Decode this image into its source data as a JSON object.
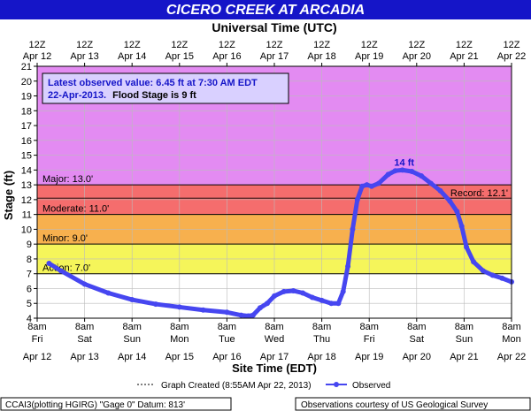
{
  "chart_data": {
    "type": "line",
    "title": "CICERO CREEK AT ARCADIA",
    "top_axis_label": "Universal Time (UTC)",
    "xlabel": "Site Time (EDT)",
    "ylabel": "Stage (ft)",
    "ylim": [
      4,
      21
    ],
    "y_ticks": [
      "4",
      "5",
      "6",
      "7",
      "8",
      "9",
      "10",
      "11",
      "12",
      "13",
      "14",
      "15",
      "16",
      "17",
      "18",
      "19",
      "20",
      "21"
    ],
    "top_ticks": [
      {
        "hour": "12Z",
        "date": "Apr 12"
      },
      {
        "hour": "12Z",
        "date": "Apr 13"
      },
      {
        "hour": "12Z",
        "date": "Apr 14"
      },
      {
        "hour": "12Z",
        "date": "Apr 15"
      },
      {
        "hour": "12Z",
        "date": "Apr 16"
      },
      {
        "hour": "12Z",
        "date": "Apr 17"
      },
      {
        "hour": "12Z",
        "date": "Apr 18"
      },
      {
        "hour": "12Z",
        "date": "Apr 19"
      },
      {
        "hour": "12Z",
        "date": "Apr 20"
      },
      {
        "hour": "12Z",
        "date": "Apr 21"
      },
      {
        "hour": "12Z",
        "date": "Apr 22"
      }
    ],
    "bottom_ticks": [
      {
        "time": "8am",
        "day": "Fri",
        "date": "Apr 12"
      },
      {
        "time": "8am",
        "day": "Sat",
        "date": "Apr 13"
      },
      {
        "time": "8am",
        "day": "Sun",
        "date": "Apr 14"
      },
      {
        "time": "8am",
        "day": "Mon",
        "date": "Apr 15"
      },
      {
        "time": "8am",
        "day": "Tue",
        "date": "Apr 16"
      },
      {
        "time": "8am",
        "day": "Wed",
        "date": "Apr 17"
      },
      {
        "time": "8am",
        "day": "Thu",
        "date": "Apr 18"
      },
      {
        "time": "8am",
        "day": "Fri",
        "date": "Apr 19"
      },
      {
        "time": "8am",
        "day": "Sat",
        "date": "Apr 20"
      },
      {
        "time": "8am",
        "day": "Sun",
        "date": "Apr 21"
      },
      {
        "time": "8am",
        "day": "Mon",
        "date": "Apr 22"
      }
    ],
    "bands": [
      {
        "label": "Major: 13.0'",
        "from": 13.0,
        "to": 21.0,
        "color": "#e38bf2"
      },
      {
        "label": "Moderate: 11.0'",
        "from": 11.0,
        "to": 13.0,
        "color": "#f56d6d"
      },
      {
        "label": "Minor: 9.0'",
        "from": 9.0,
        "to": 11.0,
        "color": "#f7b04e"
      },
      {
        "label": "Action: 7.0'",
        "from": 7.0,
        "to": 9.0,
        "color": "#f5f55a"
      }
    ],
    "record": {
      "label": "Record: 12.1'",
      "value": 12.1
    },
    "info_box": {
      "line1": "Latest observed value: 6.45 ft at 7:30 AM EDT",
      "line2_date": "22-Apr-2013.",
      "line2_flood": "Flood Stage is 9 ft"
    },
    "peak": {
      "label": "14 ft",
      "x": 7.7,
      "y": 14.0
    },
    "series": [
      {
        "name": "Observed",
        "color": "#4646f0",
        "x": [
          0.25,
          0.5,
          1.0,
          1.5,
          2.0,
          2.5,
          3.0,
          3.5,
          4.0,
          4.3,
          4.45,
          4.55,
          4.7,
          4.85,
          5.0,
          5.2,
          5.4,
          5.6,
          5.8,
          6.0,
          6.2,
          6.35,
          6.45,
          6.55,
          6.65,
          6.75,
          6.85,
          6.95,
          7.05,
          7.2,
          7.4,
          7.55,
          7.7,
          7.9,
          8.1,
          8.3,
          8.5,
          8.7,
          8.85,
          8.95,
          9.05,
          9.2,
          9.4,
          9.6,
          9.8,
          10.0
        ],
        "y": [
          7.7,
          7.2,
          6.3,
          5.7,
          5.25,
          4.95,
          4.75,
          4.55,
          4.4,
          4.2,
          4.15,
          4.2,
          4.7,
          5.0,
          5.5,
          5.8,
          5.85,
          5.7,
          5.4,
          5.2,
          5.0,
          5.0,
          5.8,
          7.5,
          10.0,
          12.0,
          12.9,
          13.0,
          12.9,
          13.1,
          13.7,
          13.95,
          14.0,
          13.9,
          13.6,
          13.1,
          12.6,
          11.9,
          11.2,
          10.2,
          8.8,
          7.8,
          7.2,
          6.9,
          6.7,
          6.45
        ]
      }
    ],
    "grid": true,
    "legend": "bottom-center"
  },
  "footer": {
    "graph_created": "Graph Created (8:55AM Apr 22, 2013)",
    "observed": "Observed",
    "datum": "CCAI3(plotting HGIRG) \"Gage 0\" Datum: 813'",
    "credit": "Observations courtesy of US Geological Survey"
  },
  "colors": {
    "title_bar": "#1515c8",
    "series": "#4646f0",
    "grid": "#bbbbbb"
  }
}
